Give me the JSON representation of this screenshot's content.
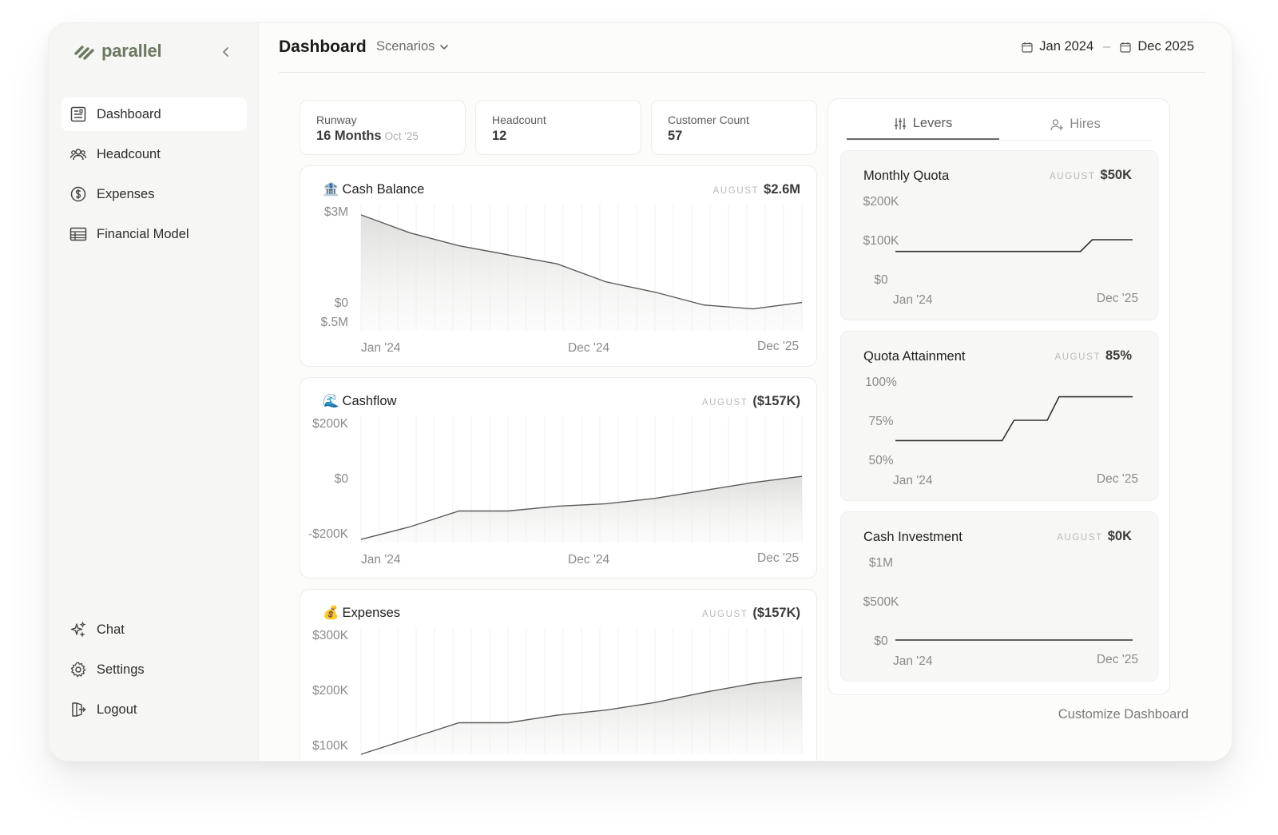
{
  "app": {
    "name": "parallel"
  },
  "sidebar": {
    "items": [
      {
        "label": "Dashboard",
        "icon": "dashboard-icon",
        "active": true
      },
      {
        "label": "Headcount",
        "icon": "users-icon",
        "active": false
      },
      {
        "label": "Expenses",
        "icon": "dollar-circle-icon",
        "active": false
      },
      {
        "label": "Financial Model",
        "icon": "table-icon",
        "active": false
      }
    ],
    "bottom_items": [
      {
        "label": "Chat",
        "icon": "sparkles-icon"
      },
      {
        "label": "Settings",
        "icon": "gear-icon"
      },
      {
        "label": "Logout",
        "icon": "logout-icon"
      }
    ]
  },
  "header": {
    "title": "Dashboard",
    "scenarios_label": "Scenarios",
    "date_start": "Jan 2024",
    "date_separator": "–",
    "date_end": "Dec 2025"
  },
  "stats": [
    {
      "label": "Runway",
      "value": "16 Months",
      "sub": "Oct '25"
    },
    {
      "label": "Headcount",
      "value": "12",
      "sub": ""
    },
    {
      "label": "Customer Count",
      "value": "57",
      "sub": ""
    }
  ],
  "aug_label": "AUGUST",
  "main_cards": [
    {
      "emoji": "🏦",
      "title": "Cash Balance",
      "aug_value": "$2.6M"
    },
    {
      "emoji": "🌊",
      "title": "Cashflow",
      "aug_value": "($157K)"
    },
    {
      "emoji": "💰",
      "title": "Expenses",
      "aug_value": "($157K)"
    }
  ],
  "side_tabs": [
    {
      "label": "Levers",
      "icon": "sliders-icon",
      "active": true
    },
    {
      "label": "Hires",
      "icon": "user-plus-icon",
      "active": false
    }
  ],
  "side_cards": [
    {
      "title": "Monthly Quota",
      "aug_value": "$50K"
    },
    {
      "title": "Quota Attainment",
      "aug_value": "85%"
    },
    {
      "title": "Cash Investment",
      "aug_value": "$0K"
    }
  ],
  "customize_label": "Customize Dashboard",
  "chart_data": [
    {
      "type": "area",
      "title": "Cash Balance",
      "x_labels": [
        "Jan '24",
        "Dec '24",
        "Dec '25"
      ],
      "y_ticks": [
        "$3M",
        "$0",
        "$.5M"
      ],
      "values": [
        2.9,
        2.2,
        1.7,
        1.35,
        1.0,
        0.3,
        -0.1,
        -0.6,
        -0.75,
        -0.5
      ],
      "ylim": [
        -1.6,
        3.3
      ],
      "grid": true
    },
    {
      "type": "area",
      "title": "Cashflow",
      "x_labels": [
        "Jan '24",
        "Dec '24",
        "Dec '25"
      ],
      "y_ticks": [
        "$200K",
        "$0",
        "-$200K"
      ],
      "values": [
        -190,
        -150,
        -100,
        -100,
        -85,
        -77,
        -60,
        -35,
        -10,
        10
      ],
      "ylim": [
        -200,
        200
      ],
      "grid": true
    },
    {
      "type": "area",
      "title": "Expenses",
      "x_labels": [],
      "y_ticks": [
        "$300K",
        "$200K",
        "$100K"
      ],
      "values": [
        100,
        125,
        150,
        150,
        162,
        170,
        182,
        198,
        212,
        222
      ],
      "ylim": [
        100,
        300
      ],
      "grid": true
    },
    {
      "type": "line",
      "title": "Monthly Quota",
      "x_labels": [
        "Jan '24",
        "Dec '25"
      ],
      "y_ticks": [
        "$200K",
        "$100K",
        "$0"
      ],
      "points": [
        [
          0,
          70
        ],
        [
          0.78,
          70
        ],
        [
          0.83,
          100
        ],
        [
          1,
          100
        ]
      ],
      "ylim": [
        0,
        200
      ]
    },
    {
      "type": "line",
      "title": "Quota Attainment",
      "x_labels": [
        "Jan '24",
        "Dec '25"
      ],
      "y_ticks": [
        "100%",
        "75%",
        "50%"
      ],
      "points": [
        [
          0,
          62
        ],
        [
          0.45,
          62
        ],
        [
          0.5,
          75
        ],
        [
          0.64,
          75
        ],
        [
          0.69,
          90
        ],
        [
          1,
          90
        ]
      ],
      "ylim": [
        50,
        100
      ]
    },
    {
      "type": "line",
      "title": "Cash Investment",
      "x_labels": [
        "Jan '24",
        "Dec '25"
      ],
      "y_ticks": [
        "$1M",
        "$500K",
        "$0"
      ],
      "points": [
        [
          0,
          0
        ],
        [
          1,
          0
        ]
      ],
      "ylim": [
        0,
        1
      ]
    }
  ]
}
